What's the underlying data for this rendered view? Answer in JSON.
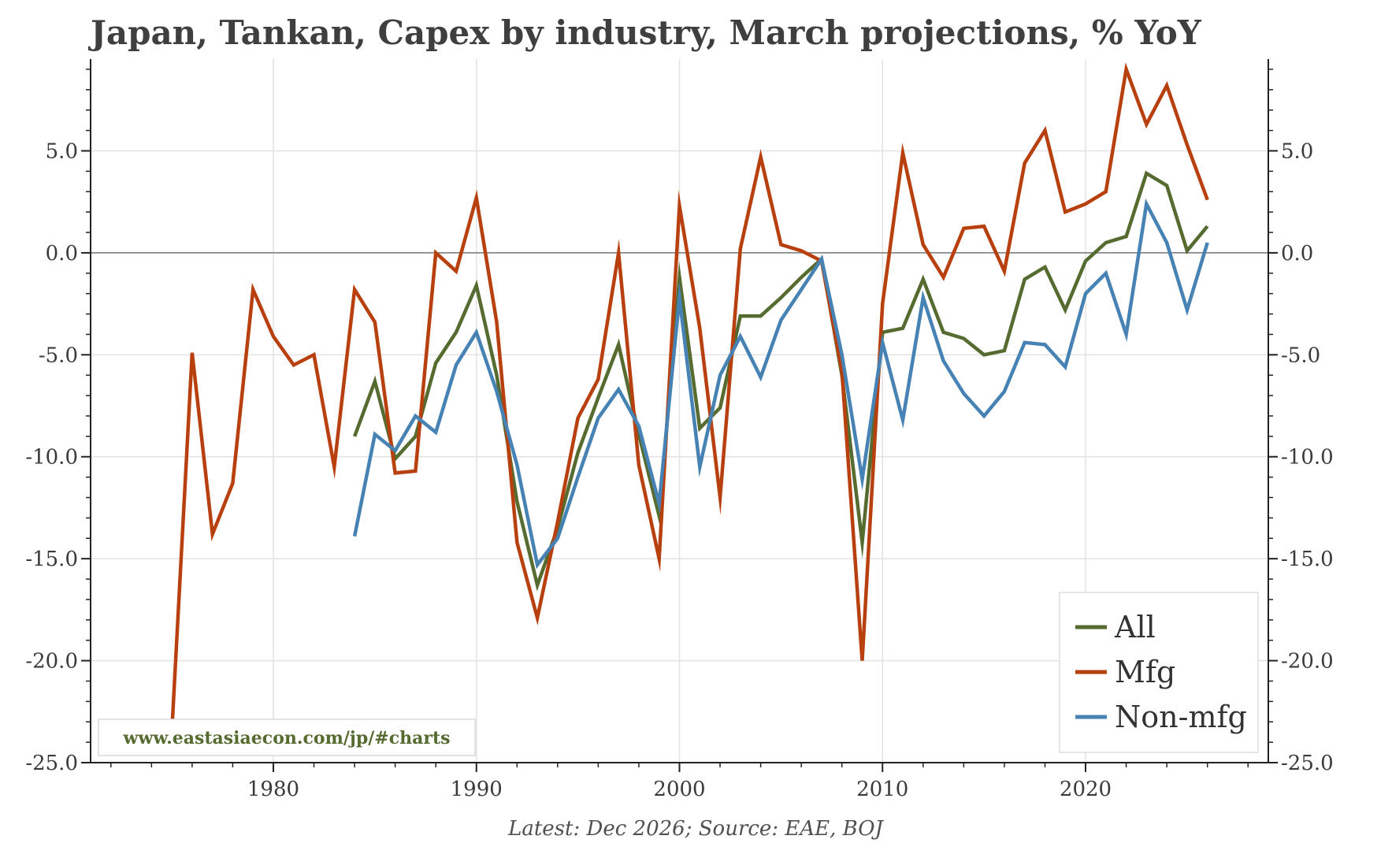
{
  "chart_data": {
    "type": "line",
    "title": "Japan, Tankan, Capex by industry, March projections, % YoY",
    "footer": "Latest: Dec 2026; Source: EAE, BOJ",
    "watermark": "www.eastasiaecon.com/jp/#charts",
    "xlim": [
      1971,
      2029
    ],
    "ylim": [
      -25,
      9.5
    ],
    "x_ticks": [
      1980,
      1990,
      2000,
      2010,
      2020
    ],
    "y_ticks": [
      5,
      0,
      -5,
      -10,
      -15,
      -20,
      -25
    ],
    "y_tick_labels": [
      "5.0",
      "0.0",
      "-5.0",
      "-10.0",
      "-15.0",
      "-20.0",
      "-25.0"
    ],
    "x_tick_labels": [
      "1980",
      "1990",
      "2000",
      "2010",
      "2020"
    ],
    "zero_line": true,
    "grid": true,
    "legend_position": "bottom-right",
    "series": [
      {
        "name": "All",
        "color": "#556b2f",
        "x": [
          1984,
          1985,
          1986,
          1987,
          1988,
          1989,
          1990,
          1991,
          1992,
          1993,
          1994,
          1995,
          1996,
          1997,
          1998,
          1999,
          2000,
          2001,
          2002,
          2003,
          2004,
          2005,
          2006,
          2007,
          2008,
          2009,
          2010,
          2011,
          2012,
          2013,
          2014,
          2015,
          2016,
          2017,
          2018,
          2019,
          2020,
          2021,
          2022,
          2023,
          2024,
          2025,
          2026
        ],
        "values": [
          -9.0,
          -6.3,
          -10.1,
          -9.0,
          -5.4,
          -3.9,
          -1.6,
          -6.0,
          -12.2,
          -16.3,
          -13.5,
          -9.8,
          -7.1,
          -4.5,
          -8.9,
          -12.9,
          -1.2,
          -8.6,
          -7.6,
          -3.1,
          -3.1,
          -2.2,
          -1.2,
          -0.3,
          -6.0,
          -14.2,
          -3.9,
          -3.7,
          -1.3,
          -3.9,
          -4.2,
          -5.0,
          -4.8,
          -1.3,
          -0.7,
          -2.8,
          -0.4,
          0.5,
          0.8,
          3.9,
          3.3,
          0.1,
          1.3
        ]
      },
      {
        "name": "Mfg",
        "color": "#b8400f",
        "x": [
          1975,
          1976,
          1977,
          1978,
          1979,
          1980,
          1981,
          1982,
          1983,
          1984,
          1985,
          1986,
          1987,
          1988,
          1989,
          1990,
          1991,
          1992,
          1993,
          1994,
          1995,
          1996,
          1997,
          1998,
          1999,
          2000,
          2001,
          2002,
          2003,
          2004,
          2005,
          2006,
          2007,
          2008,
          2009,
          2010,
          2011,
          2012,
          2013,
          2014,
          2015,
          2016,
          2017,
          2018,
          2019,
          2020,
          2021,
          2022,
          2023,
          2024,
          2025,
          2026
        ],
        "values": [
          -23.5,
          -4.9,
          -13.8,
          -11.3,
          -1.8,
          -4.1,
          -5.5,
          -5.0,
          -10.5,
          -1.8,
          -3.4,
          -10.8,
          -10.7,
          0.0,
          -0.9,
          2.7,
          -3.4,
          -14.2,
          -17.9,
          -13.2,
          -8.1,
          -6.2,
          0.0,
          -10.4,
          -15.0,
          2.3,
          -3.7,
          -12.0,
          0.2,
          4.7,
          0.4,
          0.1,
          -0.4,
          -5.8,
          -20.0,
          -2.5,
          4.9,
          0.4,
          -1.2,
          1.2,
          1.3,
          -0.9,
          4.4,
          6.0,
          2.0,
          2.4,
          3.0,
          9.0,
          6.3,
          8.2,
          5.3,
          2.6
        ]
      },
      {
        "name": "Non-mfg",
        "color": "#4682b4",
        "x": [
          1984,
          1985,
          1986,
          1987,
          1988,
          1989,
          1990,
          1991,
          1992,
          1993,
          1994,
          1995,
          1996,
          1997,
          1998,
          1999,
          2000,
          2001,
          2002,
          2003,
          2004,
          2005,
          2006,
          2007,
          2008,
          2009,
          2010,
          2011,
          2012,
          2013,
          2014,
          2015,
          2016,
          2017,
          2018,
          2019,
          2020,
          2021,
          2022,
          2023,
          2024,
          2025,
          2026
        ],
        "values": [
          -13.9,
          -8.9,
          -9.7,
          -8.0,
          -8.8,
          -5.5,
          -3.9,
          -6.8,
          -10.4,
          -15.3,
          -14.0,
          -11.0,
          -8.1,
          -6.7,
          -8.5,
          -12.3,
          -2.2,
          -10.5,
          -6.0,
          -4.1,
          -6.1,
          -3.3,
          -1.8,
          -0.3,
          -5.0,
          -11.1,
          -4.4,
          -8.2,
          -2.2,
          -5.3,
          -6.9,
          -8.0,
          -6.8,
          -4.4,
          -4.5,
          -5.6,
          -2.0,
          -1.0,
          -4.0,
          2.4,
          0.5,
          -2.8,
          0.5
        ]
      }
    ]
  }
}
